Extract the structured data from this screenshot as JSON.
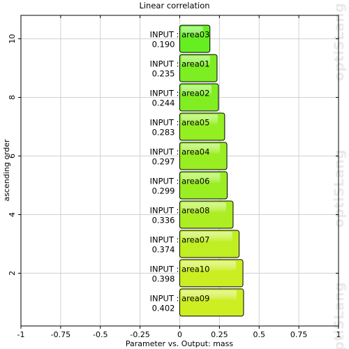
{
  "watermark": "optiSLang",
  "chart_data": {
    "type": "bar",
    "orientation": "horizontal",
    "title": "Linear correlation",
    "xlabel": "Parameter vs. Output: mass",
    "ylabel": "ascending order",
    "xlim": [
      -1,
      1
    ],
    "ylim": [
      0.2,
      10.8
    ],
    "xticks": [
      -1,
      -0.75,
      -0.5,
      -0.25,
      0,
      0.25,
      0.5,
      0.75,
      1
    ],
    "xtick_labels": [
      "-1",
      "-0.75",
      "-0.5",
      "-0.25",
      "0",
      "0.25",
      "0.5",
      "0.75",
      "1"
    ],
    "yticks": [
      2,
      4,
      6,
      8,
      10
    ],
    "grid": true,
    "bars": [
      {
        "rank": 1,
        "name": "INPUT : area09",
        "value": 0.402,
        "value_label": "0.402"
      },
      {
        "rank": 2,
        "name": "INPUT : area10",
        "value": 0.398,
        "value_label": "0.398"
      },
      {
        "rank": 3,
        "name": "INPUT : area07",
        "value": 0.374,
        "value_label": "0.374"
      },
      {
        "rank": 4,
        "name": "INPUT : area08",
        "value": 0.336,
        "value_label": "0.336"
      },
      {
        "rank": 5,
        "name": "INPUT : area06",
        "value": 0.299,
        "value_label": "0.299"
      },
      {
        "rank": 6,
        "name": "INPUT : area04",
        "value": 0.297,
        "value_label": "0.297"
      },
      {
        "rank": 7,
        "name": "INPUT : area05",
        "value": 0.283,
        "value_label": "0.283"
      },
      {
        "rank": 8,
        "name": "INPUT : area02",
        "value": 0.244,
        "value_label": "0.244"
      },
      {
        "rank": 9,
        "name": "INPUT : area01",
        "value": 0.235,
        "value_label": "0.235"
      },
      {
        "rank": 10,
        "name": "INPUT : area03",
        "value": 0.19,
        "value_label": "0.190"
      }
    ],
    "colors": {
      "high": "#ccee22",
      "low": "#66ee22",
      "edge": "#000000",
      "grid": "#d0d0d0"
    }
  }
}
